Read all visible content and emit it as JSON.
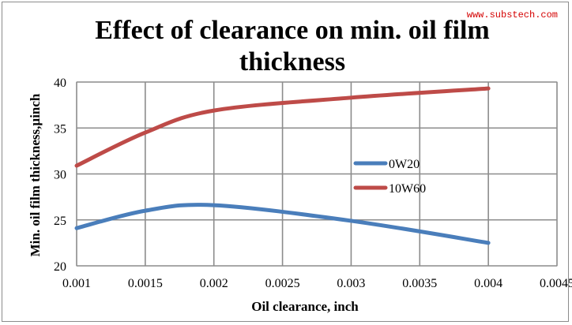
{
  "watermark": "www.substech.com",
  "chart_data": {
    "type": "line",
    "title": "Effect of clearance on min. oil film thickness",
    "title_lines": [
      "Effect of clearance on min. oil film",
      "thickness"
    ],
    "xlabel": "Oil clearance, inch",
    "ylabel": "Min. oil film thickness,µinch",
    "xlim": [
      0.001,
      0.0045
    ],
    "ylim": [
      20,
      40
    ],
    "x_ticks": [
      "0.001",
      "0.0015",
      "0.002",
      "0.0025",
      "0.003",
      "0.0035",
      "0.004",
      "0.0045"
    ],
    "x_tick_values": [
      0.001,
      0.0015,
      0.002,
      0.0025,
      0.003,
      0.0035,
      0.004,
      0.0045
    ],
    "y_ticks": [
      "20",
      "25",
      "30",
      "35",
      "40"
    ],
    "y_tick_values": [
      20,
      25,
      30,
      35,
      40
    ],
    "grid": true,
    "legend_position": "right",
    "series": [
      {
        "name": "0W20",
        "color": "#4a7ebb",
        "x": [
          0.001,
          0.0015,
          0.002,
          0.003,
          0.004
        ],
        "y": [
          24.1,
          26.0,
          26.6,
          24.9,
          22.5
        ]
      },
      {
        "name": "10W60",
        "color": "#be4b48",
        "x": [
          0.001,
          0.0015,
          0.002,
          0.003,
          0.004
        ],
        "y": [
          30.9,
          34.5,
          36.9,
          38.3,
          39.3
        ]
      }
    ]
  }
}
